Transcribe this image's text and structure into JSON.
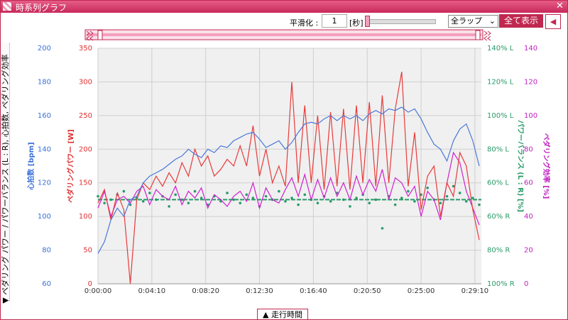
{
  "window_title": "時系列グラフ",
  "ui": {
    "smoothing_label": "平滑化 :",
    "smoothing_value": "1",
    "smoothing_unit": "[秒]",
    "lap_select": "全ラップ",
    "show_all": "全て表示",
    "side_tab": "▼ ペダリング パワー / パワーバランス (L : R), 心拍数, ペダリング効率",
    "bottom_tab": "▲ 走行時間"
  },
  "chart_data": {
    "type": "line",
    "grid": true,
    "x": [
      0,
      30,
      60,
      90,
      120,
      150,
      180,
      210,
      240,
      270,
      300,
      330,
      360,
      390,
      420,
      450,
      480,
      510,
      540,
      570,
      600,
      630,
      660,
      690,
      720,
      750,
      780,
      810,
      840,
      870,
      900,
      930,
      960,
      990,
      1020,
      1050,
      1080,
      1110,
      1140,
      1170,
      1200,
      1230,
      1260,
      1290,
      1320,
      1350,
      1380,
      1410,
      1440,
      1470,
      1500,
      1530,
      1560,
      1590,
      1620,
      1650,
      1680,
      1710,
      1740,
      1770
    ],
    "xlim": [
      0,
      1780
    ],
    "xticks": [
      {
        "value": 0,
        "label": "0:00:00"
      },
      {
        "value": 250,
        "label": "0:04:10"
      },
      {
        "value": 500,
        "label": "0:08:20"
      },
      {
        "value": 750,
        "label": "0:12:30"
      },
      {
        "value": 1000,
        "label": "0:16:40"
      },
      {
        "value": 1250,
        "label": "0:20:50"
      },
      {
        "value": 1500,
        "label": "0:25:00"
      },
      {
        "value": 1750,
        "label": "0:29:10"
      }
    ],
    "axes": [
      {
        "label": "心拍数 [bpm]",
        "color": "#3a6fd8",
        "lim": [
          60,
          200
        ],
        "ticks": [
          60,
          80,
          100,
          120,
          140,
          160,
          180,
          200
        ]
      },
      {
        "label": "ペダリングパワー [W]",
        "color": "#e03030",
        "lim": [
          0,
          350
        ],
        "ticks": [
          0,
          50,
          100,
          150,
          200,
          250,
          300,
          350
        ]
      },
      {
        "label": "パワーバランス (L : R) [%]",
        "color": "#2a9a6a",
        "lim": [
          0,
          140
        ],
        "ticks": [
          {
            "value": 0,
            "label": "100% R"
          },
          {
            "value": 20,
            "label": "80% R"
          },
          {
            "value": 40,
            "label": "60% R"
          },
          {
            "value": 60,
            "label": "60% L"
          },
          {
            "value": 80,
            "label": "80% L"
          },
          {
            "value": 100,
            "label": "100% L"
          },
          {
            "value": 120,
            "label": "120% L"
          },
          {
            "value": 140,
            "label": "140% L"
          }
        ],
        "reference": 50
      },
      {
        "label": "ペダリング効率 [%]",
        "color": "#c020c0",
        "lim": [
          0,
          140
        ],
        "ticks": [
          0,
          20,
          40,
          60,
          80,
          100,
          120,
          140
        ]
      }
    ],
    "series": [
      {
        "type": "scatter",
        "axis": 2,
        "color": "#2a9a6a",
        "values": [
          52,
          48,
          50,
          53,
          55,
          47,
          51,
          49,
          54,
          50,
          52,
          46,
          53,
          50,
          48,
          55,
          51,
          47,
          52,
          49,
          54,
          50,
          48,
          53,
          51,
          46,
          52,
          50,
          55,
          49,
          51,
          47,
          53,
          50,
          48,
          52,
          49,
          54,
          50,
          46,
          51,
          53,
          48,
          50,
          33,
          52,
          47,
          51,
          55,
          49,
          53,
          57,
          50,
          48,
          52,
          58,
          54,
          49,
          51,
          47
        ]
      },
      {
        "type": "line",
        "axis": 3,
        "color": "#d020d0",
        "values": [
          45,
          55,
          40,
          50,
          52,
          48,
          55,
          58,
          47,
          56,
          52,
          50,
          58,
          47,
          55,
          51,
          57,
          45,
          53,
          50,
          46,
          52,
          55,
          49,
          60,
          45,
          57,
          50,
          48,
          56,
          63,
          52,
          65,
          50,
          62,
          51,
          63,
          52,
          60,
          50,
          64,
          53,
          62,
          55,
          68,
          50,
          63,
          60,
          52,
          58,
          40,
          55,
          50,
          38,
          60,
          78,
          72,
          55,
          45,
          35
        ]
      },
      {
        "type": "line",
        "axis": 1,
        "color": "#e83a3a",
        "values": [
          120,
          140,
          95,
          135,
          110,
          0,
          125,
          150,
          140,
          160,
          145,
          165,
          150,
          180,
          160,
          200,
          175,
          190,
          160,
          170,
          185,
          175,
          205,
          175,
          235,
          160,
          200,
          150,
          175,
          145,
          300,
          150,
          265,
          150,
          250,
          140,
          255,
          145,
          260,
          140,
          265,
          150,
          270,
          145,
          280,
          150,
          260,
          315,
          145,
          225,
          110,
          160,
          175,
          100,
          150,
          130,
          195,
          175,
          110,
          65
        ]
      },
      {
        "type": "line",
        "axis": 0,
        "color": "#4a78d8",
        "values": [
          78,
          85,
          98,
          105,
          100,
          110,
          112,
          120,
          124,
          126,
          128,
          131,
          134,
          136,
          140,
          137,
          135,
          140,
          138,
          142,
          141,
          145,
          147,
          149,
          150,
          146,
          141,
          143,
          145,
          140,
          144,
          150,
          155,
          156,
          155,
          158,
          160,
          157,
          160,
          158,
          160,
          157,
          161,
          163,
          161,
          164,
          163,
          165,
          162,
          164,
          158,
          150,
          143,
          140,
          133,
          145,
          152,
          155,
          145,
          130
        ]
      }
    ]
  }
}
